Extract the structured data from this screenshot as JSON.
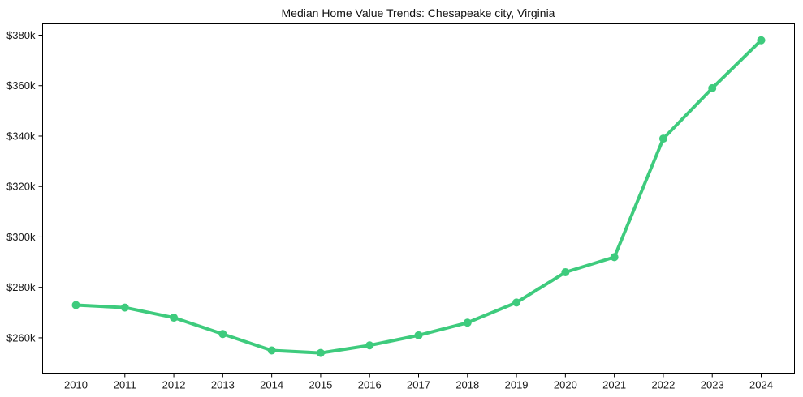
{
  "chart_data": {
    "type": "line",
    "title": "Median Home Value Trends: Chesapeake city, Virginia",
    "series_name": "Median Home Value",
    "x": [
      2010,
      2011,
      2012,
      2013,
      2014,
      2015,
      2016,
      2017,
      2018,
      2019,
      2020,
      2021,
      2022,
      2023,
      2024
    ],
    "values": [
      273000,
      272000,
      268000,
      261500,
      255000,
      254000,
      257000,
      261000,
      266000,
      274000,
      286000,
      292000,
      339000,
      359000,
      378000
    ],
    "xlabel": "",
    "ylabel": "",
    "ylim": [
      246000,
      384500
    ],
    "y_ticks": [
      260000,
      280000,
      300000,
      320000,
      340000,
      360000,
      380000
    ],
    "y_tick_labels": [
      "$260k",
      "$280k",
      "$300k",
      "$320k",
      "$340k",
      "$360k",
      "$380k"
    ],
    "grid": false,
    "legend": false,
    "line_color": "#3ecb7d",
    "marker": "circle",
    "marker_color": "#3ecb7d",
    "axis_color": "#000000",
    "tick_text_color": "#1a1a1a",
    "background_color": "#ffffff"
  }
}
